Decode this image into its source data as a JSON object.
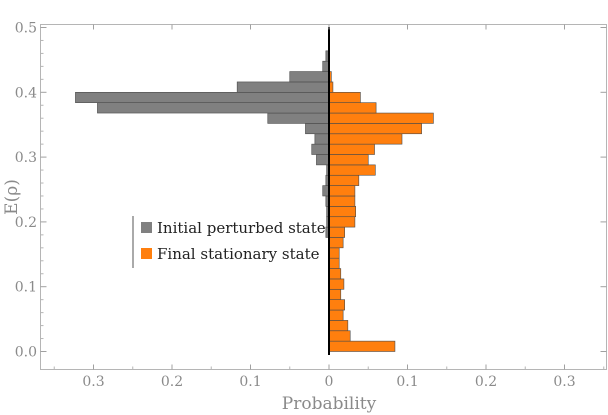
{
  "chart_data": {
    "type": "bar",
    "orientation": "horizontal-back-to-back",
    "title": "",
    "xlabel": "Probability",
    "ylabel": "E(ρ)",
    "xlim": [
      -0.35,
      0.35
    ],
    "ylim": [
      -0.015,
      0.505
    ],
    "x_ticks": [
      -0.3,
      -0.2,
      -0.1,
      0,
      0.1,
      0.2,
      0.3
    ],
    "x_tick_labels": [
      "0.3",
      "0.2",
      "0.1",
      "0",
      "0.1",
      "0.2",
      "0.3"
    ],
    "y_ticks": [
      0.0,
      0.1,
      0.2,
      0.3,
      0.4,
      0.5
    ],
    "y_tick_labels": [
      "0.0",
      "0.1",
      "0.2",
      "0.3",
      "0.4",
      "0.5"
    ],
    "bin_width": 0.016,
    "bin_starts": [
      0.0,
      0.016,
      0.032,
      0.048,
      0.064,
      0.08,
      0.096,
      0.112,
      0.128,
      0.144,
      0.16,
      0.176,
      0.192,
      0.208,
      0.224,
      0.24,
      0.256,
      0.272,
      0.288,
      0.304,
      0.32,
      0.336,
      0.352,
      0.368,
      0.384,
      0.4,
      0.416,
      0.432,
      0.448,
      0.464,
      0.48
    ],
    "grid": false,
    "legend_position": "left-middle",
    "series": [
      {
        "name": "Initial perturbed state",
        "side": "left",
        "color": "#808080",
        "values": [
          0.0,
          0.0,
          0.0,
          0.0,
          0.0,
          0.0,
          0.0,
          0.0,
          0.0,
          0.0,
          0.0,
          0.004,
          0.003,
          0.003,
          0.004,
          0.008,
          0.004,
          0.003,
          0.016,
          0.022,
          0.018,
          0.03,
          0.078,
          0.295,
          0.323,
          0.117,
          0.05,
          0.008,
          0.004,
          0.0,
          0.0
        ]
      },
      {
        "name": "Final stationary state",
        "side": "right",
        "color": "#ff7f0e",
        "values": [
          0.084,
          0.027,
          0.024,
          0.018,
          0.02,
          0.015,
          0.019,
          0.015,
          0.013,
          0.013,
          0.018,
          0.02,
          0.033,
          0.034,
          0.033,
          0.033,
          0.038,
          0.059,
          0.05,
          0.058,
          0.093,
          0.118,
          0.133,
          0.06,
          0.04,
          0.005,
          0.003,
          0.0,
          0.0,
          0.0,
          0.0
        ]
      }
    ]
  }
}
